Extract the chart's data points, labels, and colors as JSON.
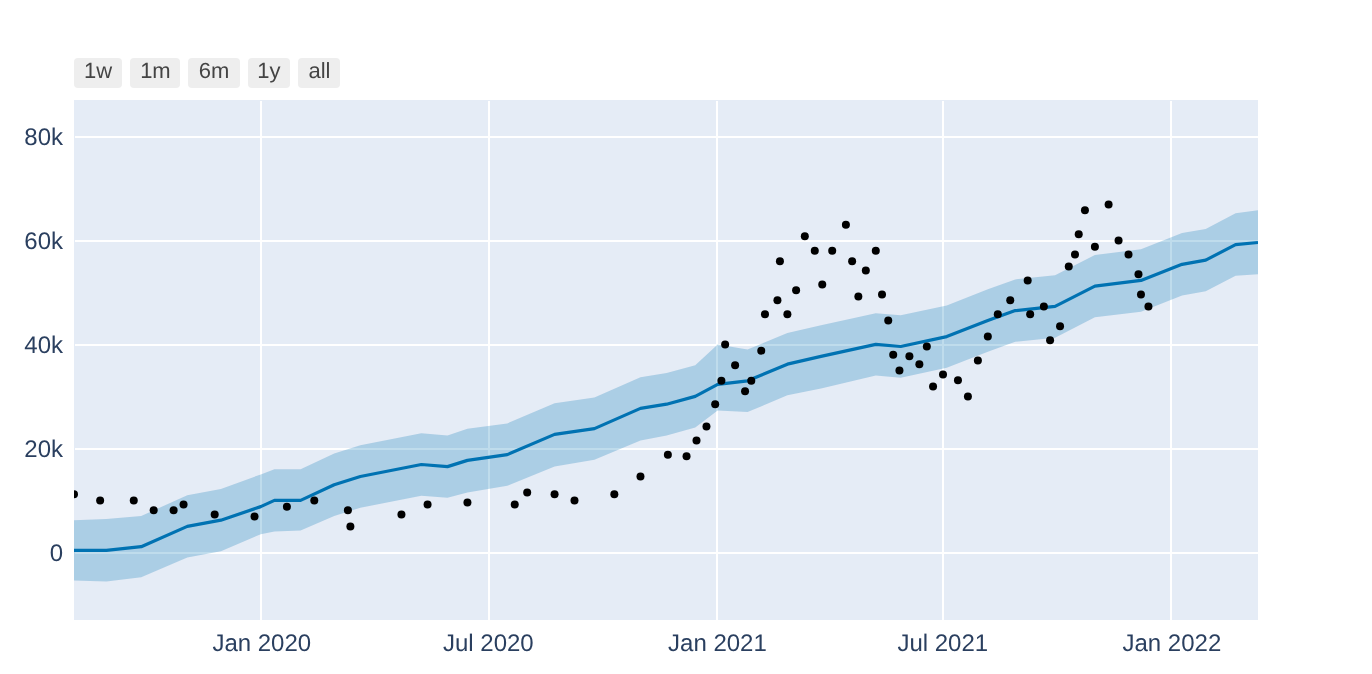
{
  "chart_data": {
    "type": "scatter",
    "annotations": [
      "1w",
      "1m",
      "6m",
      "1y",
      "all"
    ],
    "xlim": [
      "2019-08-04",
      "2022-03-12"
    ],
    "xticks": [
      {
        "value": "2020-01-01",
        "label": "Jan 2020"
      },
      {
        "value": "2020-07-01",
        "label": "Jul 2020"
      },
      {
        "value": "2021-01-01",
        "label": "Jan 2021"
      },
      {
        "value": "2021-07-01",
        "label": "Jul 2021"
      },
      {
        "value": "2022-01-01",
        "label": "Jan 2022"
      }
    ],
    "ylim": [
      -13000,
      87000
    ],
    "yticks": [
      0,
      {
        "value": 20000,
        "label": "20k"
      },
      {
        "value": 40000,
        "label": "40k"
      },
      {
        "value": 60000,
        "label": "60k"
      },
      {
        "value": 80000,
        "label": "80k"
      }
    ],
    "grid": true,
    "series": [
      {
        "type": "line",
        "color": "#0072b2",
        "x": [
          "2019-08-04",
          "2019-08-30",
          "2019-09-27",
          "2019-11-03",
          "2019-11-30",
          "2020-01-01",
          "2020-01-12",
          "2020-02-02",
          "2020-02-29",
          "2020-03-21",
          "2020-05-09",
          "2020-05-30",
          "2020-06-15",
          "2020-07-17",
          "2020-08-24",
          "2020-09-25",
          "2020-11-01",
          "2020-11-22",
          "2020-12-15",
          "2021-01-02",
          "2021-01-26",
          "2021-02-27",
          "2021-03-26",
          "2021-05-09",
          "2021-05-29",
          "2021-07-05",
          "2021-08-07",
          "2021-08-29",
          "2021-09-30",
          "2021-11-01",
          "2021-12-08",
          "2022-01-10",
          "2022-01-29",
          "2022-02-22",
          "2022-03-12"
        ],
        "values": [
          400,
          400,
          1100,
          5000,
          6200,
          8800,
          10000,
          10000,
          13000,
          14600,
          16900,
          16500,
          17700,
          18800,
          22700,
          23800,
          27700,
          28500,
          30000,
          32300,
          33000,
          36200,
          37700,
          40000,
          39600,
          41500,
          44600,
          46500,
          47300,
          51200,
          52300,
          55400,
          56200,
          59200,
          59600
        ],
        "lower": [
          -5400,
          -5600,
          -4800,
          -1000,
          200,
          3500,
          4000,
          4200,
          7000,
          8600,
          10900,
          10500,
          11500,
          12800,
          16500,
          17800,
          21500,
          22500,
          24000,
          27300,
          27000,
          30200,
          31500,
          34000,
          33600,
          35500,
          38600,
          40500,
          41300,
          45200,
          46300,
          49400,
          50200,
          53200,
          53500
        ],
        "upper": [
          6200,
          6400,
          7000,
          11000,
          12200,
          15000,
          16000,
          16000,
          19000,
          20600,
          22900,
          22500,
          23800,
          24800,
          28700,
          29800,
          33700,
          34500,
          36000,
          40000,
          39000,
          42200,
          43700,
          46000,
          45600,
          47500,
          50600,
          52500,
          53300,
          57200,
          58300,
          61400,
          62200,
          65200,
          65800
        ]
      },
      {
        "type": "scatter",
        "color": "#000000",
        "marker": "circle",
        "x": [
          "2019-08-04",
          "2019-08-25",
          "2019-09-21",
          "2019-10-07",
          "2019-10-23",
          "2019-10-31",
          "2019-11-25",
          "2019-12-27",
          "2020-01-22",
          "2020-02-13",
          "2020-03-11",
          "2020-03-13",
          "2020-04-23",
          "2020-05-14",
          "2020-06-15",
          "2020-07-23",
          "2020-08-02",
          "2020-08-24",
          "2020-09-09",
          "2020-10-11",
          "2020-11-01",
          "2020-11-23",
          "2020-12-08",
          "2020-12-16",
          "2020-12-24",
          "2020-12-31",
          "2021-01-05",
          "2021-01-08",
          "2021-01-16",
          "2021-01-24",
          "2021-01-29",
          "2021-02-06",
          "2021-02-09",
          "2021-02-19",
          "2021-02-21",
          "2021-02-27",
          "2021-03-06",
          "2021-03-13",
          "2021-03-21",
          "2021-03-27",
          "2021-04-04",
          "2021-04-15",
          "2021-04-20",
          "2021-04-25",
          "2021-05-01",
          "2021-05-09",
          "2021-05-14",
          "2021-05-19",
          "2021-05-23",
          "2021-05-28",
          "2021-06-05",
          "2021-06-13",
          "2021-06-19",
          "2021-06-24",
          "2021-07-02",
          "2021-07-14",
          "2021-07-22",
          "2021-07-30",
          "2021-08-07",
          "2021-08-15",
          "2021-08-25",
          "2021-09-08",
          "2021-09-10",
          "2021-09-21",
          "2021-09-26",
          "2021-10-04",
          "2021-10-11",
          "2021-10-16",
          "2021-10-19",
          "2021-10-24",
          "2021-11-01",
          "2021-11-12",
          "2021-11-20",
          "2021-11-28",
          "2021-12-06",
          "2021-12-08",
          "2021-12-14"
        ],
        "values": [
          11200,
          10000,
          10000,
          8100,
          8100,
          9200,
          7300,
          6900,
          8800,
          10000,
          8100,
          5000,
          7300,
          9200,
          9600,
          9200,
          11500,
          11200,
          10000,
          11200,
          14600,
          18800,
          18500,
          21500,
          24200,
          28500,
          33000,
          40000,
          36000,
          31000,
          33000,
          38800,
          45800,
          48500,
          56000,
          45800,
          50400,
          60800,
          58000,
          51500,
          58000,
          63000,
          56000,
          49200,
          54200,
          58000,
          49600,
          44600,
          38000,
          35000,
          37700,
          36200,
          39600,
          31900,
          34200,
          33100,
          30000,
          36900,
          41500,
          45800,
          48500,
          52300,
          45800,
          47300,
          40800,
          43500,
          55000,
          57300,
          61200,
          65800,
          58800,
          66900,
          60000,
          57300,
          53500,
          49600,
          47300
        ]
      }
    ]
  }
}
